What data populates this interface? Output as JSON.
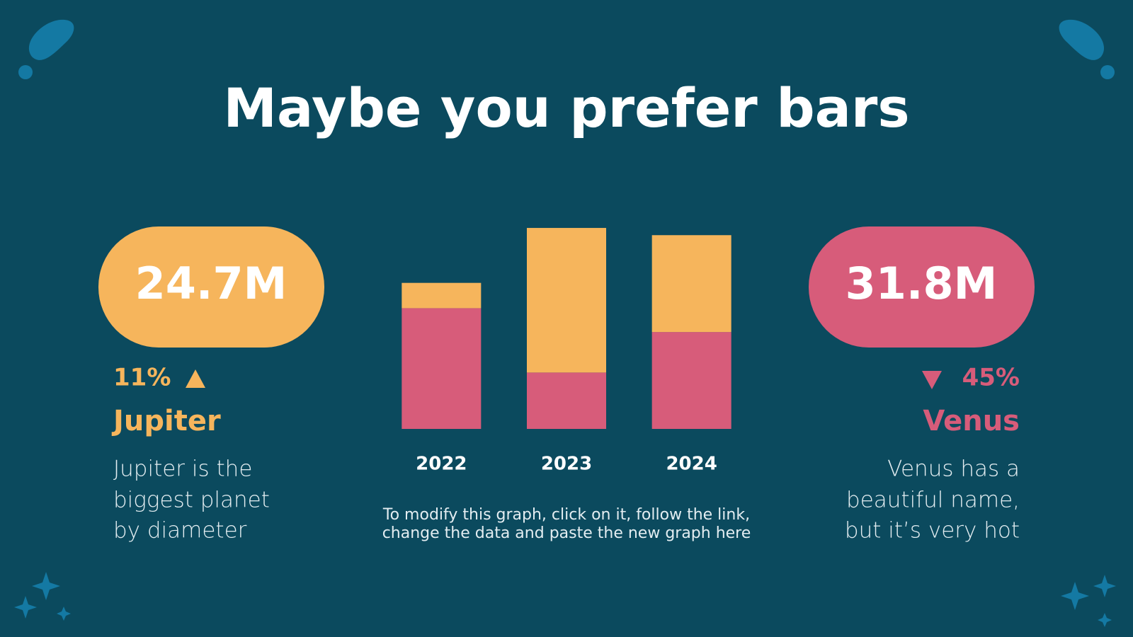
{
  "title": "Maybe you prefer bars",
  "left": {
    "value": "24.7M",
    "change": "11%",
    "name": "Jupiter",
    "description": [
      "Jupiter is the",
      "biggest planet",
      "by diameter"
    ]
  },
  "right": {
    "value": "31.8M",
    "change": "45%",
    "name": "Venus",
    "description": [
      "Venus has a",
      "beautiful name,",
      "but it’s very hot"
    ]
  },
  "note": [
    "To modify this graph, click on it, follow the link,",
    "change the data and paste the new graph here"
  ],
  "chart_data": {
    "type": "stacked_bar",
    "categories": [
      "2022",
      "2023",
      "2024"
    ],
    "series": [
      {
        "color": "#d75c7a",
        "values": [
          167,
          78,
          134
        ]
      },
      {
        "color": "#f6b55c",
        "values": [
          35,
          200,
          134
        ]
      }
    ],
    "ylim": [
      0,
      280
    ]
  }
}
